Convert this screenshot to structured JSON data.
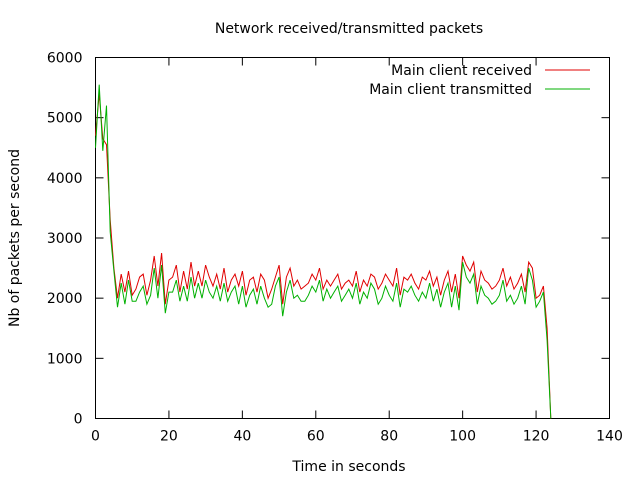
{
  "chart_data": {
    "type": "line",
    "title": "Network received/transmitted packets",
    "xlabel": "Time in seconds",
    "ylabel": "Nb of packets per second",
    "xlim": [
      0,
      140
    ],
    "ylim": [
      0,
      6000
    ],
    "xticks": [
      0,
      20,
      40,
      60,
      80,
      100,
      120,
      140
    ],
    "yticks": [
      0,
      1000,
      2000,
      3000,
      4000,
      5000,
      6000
    ],
    "grid": false,
    "legend_position": "top-right",
    "series": [
      {
        "name": "Main client received",
        "color": "#e00000",
        "x": [
          0,
          1,
          2,
          3,
          4,
          5,
          6,
          7,
          8,
          9,
          10,
          11,
          12,
          13,
          14,
          15,
          16,
          17,
          18,
          19,
          20,
          21,
          22,
          23,
          24,
          25,
          26,
          27,
          28,
          29,
          30,
          31,
          32,
          33,
          34,
          35,
          36,
          37,
          38,
          39,
          40,
          41,
          42,
          43,
          44,
          45,
          46,
          47,
          48,
          49,
          50,
          51,
          52,
          53,
          54,
          55,
          56,
          57,
          58,
          59,
          60,
          61,
          62,
          63,
          64,
          65,
          66,
          67,
          68,
          69,
          70,
          71,
          72,
          73,
          74,
          75,
          76,
          77,
          78,
          79,
          80,
          81,
          82,
          83,
          84,
          85,
          86,
          87,
          88,
          89,
          90,
          91,
          92,
          93,
          94,
          95,
          96,
          97,
          98,
          99,
          100,
          101,
          102,
          103,
          104,
          105,
          106,
          107,
          108,
          109,
          110,
          111,
          112,
          113,
          114,
          115,
          116,
          117,
          118,
          119,
          120,
          121,
          122,
          123,
          124
        ],
        "y": [
          4700,
          5400,
          4650,
          4550,
          3300,
          2500,
          2000,
          2400,
          2100,
          2450,
          2050,
          2150,
          2350,
          2400,
          2050,
          2300,
          2700,
          2200,
          2750,
          1900,
          2300,
          2350,
          2550,
          2100,
          2450,
          2150,
          2600,
          2200,
          2450,
          2200,
          2550,
          2350,
          2200,
          2400,
          2150,
          2500,
          2100,
          2300,
          2400,
          2200,
          2450,
          2050,
          2300,
          2350,
          2100,
          2400,
          2300,
          2000,
          2150,
          2350,
          2550,
          1900,
          2350,
          2500,
          2200,
          2300,
          2150,
          2200,
          2250,
          2400,
          2300,
          2500,
          2150,
          2300,
          2200,
          2300,
          2400,
          2150,
          2250,
          2300,
          2200,
          2450,
          2100,
          2300,
          2200,
          2400,
          2350,
          2150,
          2250,
          2400,
          2300,
          2200,
          2500,
          2050,
          2350,
          2300,
          2400,
          2250,
          2150,
          2350,
          2300,
          2450,
          2200,
          2350,
          2050,
          2300,
          2450,
          2100,
          2400,
          2000,
          2700,
          2550,
          2450,
          2600,
          2100,
          2450,
          2300,
          2250,
          2150,
          2200,
          2300,
          2500,
          2200,
          2350,
          2150,
          2250,
          2400,
          2100,
          2600,
          2500,
          2000,
          2050,
          2200,
          1500,
          0
        ]
      },
      {
        "name": "Main client transmitted",
        "color": "#00b000",
        "x": [
          0,
          1,
          2,
          3,
          4,
          5,
          6,
          7,
          8,
          9,
          10,
          11,
          12,
          13,
          14,
          15,
          16,
          17,
          18,
          19,
          20,
          21,
          22,
          23,
          24,
          25,
          26,
          27,
          28,
          29,
          30,
          31,
          32,
          33,
          34,
          35,
          36,
          37,
          38,
          39,
          40,
          41,
          42,
          43,
          44,
          45,
          46,
          47,
          48,
          49,
          50,
          51,
          52,
          53,
          54,
          55,
          56,
          57,
          58,
          59,
          60,
          61,
          62,
          63,
          64,
          65,
          66,
          67,
          68,
          69,
          70,
          71,
          72,
          73,
          74,
          75,
          76,
          77,
          78,
          79,
          80,
          81,
          82,
          83,
          84,
          85,
          86,
          87,
          88,
          89,
          90,
          91,
          92,
          93,
          94,
          95,
          96,
          97,
          98,
          99,
          100,
          101,
          102,
          103,
          104,
          105,
          106,
          107,
          108,
          109,
          110,
          111,
          112,
          113,
          114,
          115,
          116,
          117,
          118,
          119,
          120,
          121,
          122,
          123,
          124
        ],
        "y": [
          4500,
          5550,
          4450,
          5200,
          3100,
          2450,
          1850,
          2250,
          1900,
          2300,
          1950,
          1950,
          2100,
          2200,
          1900,
          2050,
          2500,
          2000,
          2550,
          1750,
          2100,
          2100,
          2300,
          1950,
          2200,
          1950,
          2350,
          2000,
          2250,
          2000,
          2300,
          2100,
          2000,
          2200,
          1950,
          2250,
          1950,
          2100,
          2200,
          1900,
          2200,
          1850,
          2050,
          2150,
          1900,
          2200,
          2000,
          1850,
          1900,
          2200,
          2350,
          1700,
          2100,
          2300,
          2000,
          2050,
          1950,
          1950,
          2050,
          2200,
          2100,
          2300,
          1950,
          2150,
          2000,
          2100,
          2200,
          1950,
          2050,
          2150,
          2000,
          2250,
          1900,
          2100,
          2000,
          2250,
          2150,
          1900,
          2000,
          2200,
          2050,
          1950,
          2250,
          1850,
          2150,
          2100,
          2200,
          2050,
          1950,
          2100,
          2000,
          2250,
          1950,
          2150,
          1850,
          2100,
          2250,
          1850,
          2200,
          1800,
          2600,
          2350,
          2250,
          2400,
          1900,
          2200,
          2050,
          2000,
          1900,
          1950,
          2050,
          2300,
          1950,
          2050,
          1900,
          2000,
          2200,
          1900,
          2500,
          2300,
          1850,
          1950,
          2100,
          1300,
          0
        ]
      }
    ]
  }
}
